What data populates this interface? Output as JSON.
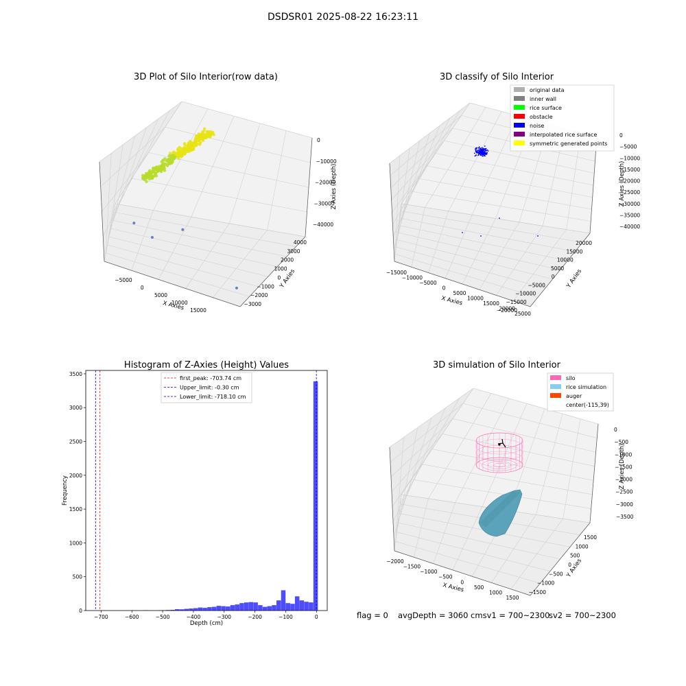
{
  "figure": {
    "suptitle": "DSDSR01 2025-08-22 16:23:11",
    "footer": {
      "flag": "flag = 0",
      "avg_depth": "avgDepth = 3060 cmsv1 = 700~2300",
      "sv2": "sv2 = 700~2300"
    }
  },
  "colors": {
    "yellow_points": "#e8e414",
    "green_points": "#b7dc28",
    "scatter_blue": "#6a7fc0",
    "noise": "#0000ff",
    "histogram": "#4d4dff",
    "first_peak_line": "#ff0000",
    "limit_line": "#0000cc",
    "silo_mesh": "#ff69b4",
    "rice_surface": "#5ba3bb"
  },
  "chart_data": [
    {
      "type": "scatter",
      "projection": "3d",
      "title": "3D Plot of Silo Interior(row data)",
      "xlabel": "X Axies",
      "ylabel": "Y Axies",
      "zlabel": "Z Axies (Depth)",
      "x_ticks": [
        "−5000",
        "0",
        "5000",
        "10000",
        "15000"
      ],
      "y_ticks": [
        "−3000",
        "−2000",
        "−1000",
        "0",
        "1000",
        "2000",
        "3000",
        "4000"
      ],
      "z_ticks": [
        "0",
        "−10000",
        "−20000",
        "−30000",
        "−40000"
      ],
      "outlier_points": [
        {
          "x": -4000,
          "y": 1200,
          "z": -38000
        },
        {
          "x": -1000,
          "y": 600,
          "z": -40000
        },
        {
          "x": 2500,
          "y": 2200,
          "z": -40500
        },
        {
          "x": 15000,
          "y": -1800,
          "z": -41000
        }
      ],
      "grid": true
    },
    {
      "type": "scatter",
      "projection": "3d",
      "title": "3D classify of Silo Interior",
      "xlabel": "X Axies",
      "ylabel": "Y Axies",
      "zlabel": "Z Axies (Depth)",
      "x_ticks": [
        "−15000",
        "−10000",
        "−5000",
        "0",
        "5000",
        "10000",
        "15000",
        "20000",
        "25000"
      ],
      "y_ticks": [
        "−20000",
        "−15000",
        "−10000",
        "−5000",
        "0",
        "5000",
        "10000",
        "15000",
        "20000"
      ],
      "z_ticks": [
        "0",
        "−5000",
        "−10000",
        "−15000",
        "−20000",
        "−25000",
        "−30000",
        "−35000",
        "−40000"
      ],
      "legend": [
        {
          "label": "original data",
          "color": "#b0b0b0"
        },
        {
          "label": "inner wall",
          "color": "#808080"
        },
        {
          "label": "rice surface",
          "color": "#00ff00"
        },
        {
          "label": "obstacle",
          "color": "#ff0000"
        },
        {
          "label": "noise",
          "color": "#0000ff"
        },
        {
          "label": "interpolated rice surface",
          "color": "#800080"
        },
        {
          "label": "symmetric generated points",
          "color": "#ffff00"
        }
      ],
      "legend_position": "upper-right",
      "grid": true
    },
    {
      "type": "bar",
      "title": "Histogram of Z-Axies (Height) Values",
      "xlabel": "Depth (cm)",
      "ylabel": "Frequency",
      "xlim": [
        -750,
        35
      ],
      "ylim": [
        0,
        3550
      ],
      "x_ticks": [
        {
          "value": -700,
          "label": "−700"
        },
        {
          "value": -600,
          "label": "−600"
        },
        {
          "value": -500,
          "label": "−500"
        },
        {
          "value": -400,
          "label": "−400"
        },
        {
          "value": -300,
          "label": "−300"
        },
        {
          "value": -200,
          "label": "−200"
        },
        {
          "value": -100,
          "label": "−100"
        },
        {
          "value": 0,
          "label": "0"
        }
      ],
      "y_ticks": [
        {
          "value": 0,
          "label": "0"
        },
        {
          "value": 500,
          "label": "500"
        },
        {
          "value": 1000,
          "label": "1000"
        },
        {
          "value": 1500,
          "label": "1500"
        },
        {
          "value": 2000,
          "label": "2000"
        },
        {
          "value": 2500,
          "label": "2500"
        },
        {
          "value": 3000,
          "label": "3000"
        },
        {
          "value": 3500,
          "label": "3500"
        }
      ],
      "bins": [
        {
          "x0": -560,
          "x1": -545,
          "count": 5
        },
        {
          "x0": -520,
          "x1": -505,
          "count": 3
        },
        {
          "x0": -505,
          "x1": -490,
          "count": 5
        },
        {
          "x0": -490,
          "x1": -475,
          "count": 8
        },
        {
          "x0": -475,
          "x1": -460,
          "count": 10
        },
        {
          "x0": -460,
          "x1": -445,
          "count": 20
        },
        {
          "x0": -445,
          "x1": -430,
          "count": 18
        },
        {
          "x0": -430,
          "x1": -415,
          "count": 25
        },
        {
          "x0": -415,
          "x1": -400,
          "count": 30
        },
        {
          "x0": -400,
          "x1": -385,
          "count": 35
        },
        {
          "x0": -385,
          "x1": -370,
          "count": 45
        },
        {
          "x0": -370,
          "x1": -355,
          "count": 40
        },
        {
          "x0": -355,
          "x1": -340,
          "count": 50
        },
        {
          "x0": -340,
          "x1": -325,
          "count": 55
        },
        {
          "x0": -325,
          "x1": -310,
          "count": 70
        },
        {
          "x0": -310,
          "x1": -295,
          "count": 65
        },
        {
          "x0": -295,
          "x1": -280,
          "count": 60
        },
        {
          "x0": -280,
          "x1": -265,
          "count": 80
        },
        {
          "x0": -265,
          "x1": -250,
          "count": 90
        },
        {
          "x0": -250,
          "x1": -235,
          "count": 110
        },
        {
          "x0": -235,
          "x1": -220,
          "count": 120
        },
        {
          "x0": -220,
          "x1": -205,
          "count": 125
        },
        {
          "x0": -205,
          "x1": -190,
          "count": 120
        },
        {
          "x0": -190,
          "x1": -175,
          "count": 80
        },
        {
          "x0": -175,
          "x1": -160,
          "count": 55
        },
        {
          "x0": -160,
          "x1": -145,
          "count": 65
        },
        {
          "x0": -145,
          "x1": -130,
          "count": 80
        },
        {
          "x0": -130,
          "x1": -115,
          "count": 150
        },
        {
          "x0": -115,
          "x1": -100,
          "count": 300
        },
        {
          "x0": -100,
          "x1": -85,
          "count": 110
        },
        {
          "x0": -85,
          "x1": -70,
          "count": 100
        },
        {
          "x0": -70,
          "x1": -55,
          "count": 210
        },
        {
          "x0": -55,
          "x1": -40,
          "count": 150
        },
        {
          "x0": -40,
          "x1": -25,
          "count": 130
        },
        {
          "x0": -25,
          "x1": -10,
          "count": 120
        },
        {
          "x0": -10,
          "x1": 5,
          "count": 3390
        }
      ],
      "vlines": [
        {
          "name": "first_peak",
          "value": -703.74,
          "style": "first_peak_line"
        },
        {
          "name": "Upper_limit",
          "value": -0.3,
          "style": "limit_line"
        },
        {
          "name": "Lower_limit",
          "value": -718.1,
          "style": "limit_line"
        }
      ],
      "legend": [
        {
          "label": "first_peak: -703.74 cm",
          "color": "#ff0000"
        },
        {
          "label": "Upper_limit: -0.30 cm",
          "color": "#0000cc"
        },
        {
          "label": "Lower_limit: -718.10 cm",
          "color": "#0000cc"
        }
      ],
      "legend_position": "upper-center",
      "grid": false
    },
    {
      "type": "scatter",
      "projection": "3d",
      "title": "3D simulation of Silo Interior",
      "xlabel": "X Axies",
      "ylabel": "Y Axies",
      "zlabel": "Z Axies (Depth)",
      "x_ticks": [
        "−2000",
        "−1500",
        "−1000",
        "−500",
        "0",
        "500",
        "1000",
        "1500"
      ],
      "y_ticks": [
        "−1500",
        "−1000",
        "−500",
        "0",
        "500",
        "1000",
        "1500"
      ],
      "z_ticks": [
        "0",
        "−500",
        "−1000",
        "−1500",
        "−2000",
        "−2500",
        "−3000",
        "−3500"
      ],
      "legend": [
        {
          "label": "silo",
          "color": "#ff69b4"
        },
        {
          "label": "rice simulation",
          "color": "#87ceeb"
        },
        {
          "label": "auger",
          "color": "#ff4500"
        },
        {
          "label": "center(-115,39)",
          "color": ""
        }
      ],
      "legend_position": "upper-right",
      "grid": true
    }
  ]
}
